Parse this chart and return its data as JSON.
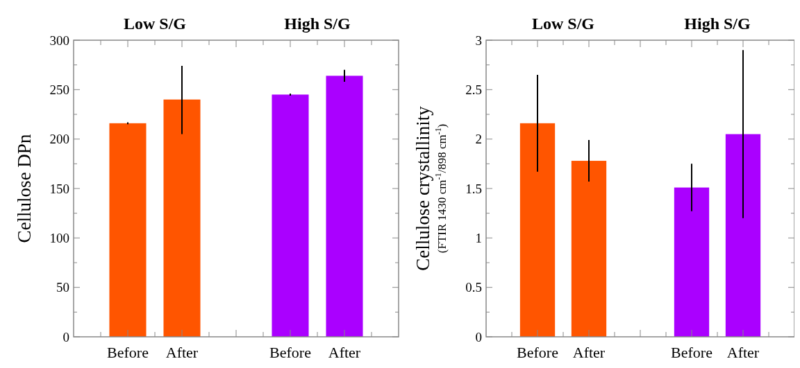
{
  "chart_data": [
    {
      "type": "bar",
      "categories": [
        "Before",
        "After",
        null,
        "Before",
        "After"
      ],
      "annotations": [
        "Low S/G",
        "High S/G"
      ],
      "ylabel": "Cellulose DPn",
      "values": [
        216,
        240,
        null,
        245,
        264
      ],
      "errors": [
        1,
        [
          205,
          274
        ],
        null,
        1,
        [
          258,
          270
        ]
      ],
      "colors": [
        "#ff5500",
        "#ff5500",
        null,
        "#aa00ff",
        "#aa00ff"
      ],
      "ylim": [
        0,
        300
      ],
      "yticks": [
        0,
        50,
        100,
        150,
        200,
        250,
        300
      ]
    },
    {
      "type": "bar",
      "categories": [
        "Before",
        "After",
        null,
        "Before",
        "After"
      ],
      "annotations": [
        "Low S/G",
        "High S/G"
      ],
      "ylabel": "Cellulose crystallinity\n(FTIR 1430 cm$^{-1}$/898 cm$^{-1}$)",
      "values": [
        2.16,
        1.78,
        null,
        1.51,
        2.05
      ],
      "errors": [
        [
          1.67,
          2.65
        ],
        [
          1.57,
          1.99
        ],
        null,
        [
          1.27,
          1.75
        ],
        [
          1.2,
          2.9
        ]
      ],
      "colors": [
        "#ff5500",
        "#ff5500",
        null,
        "#aa00ff",
        "#aa00ff"
      ],
      "ylim": [
        0,
        3
      ],
      "yticks": [
        0,
        {
          "value": 0.5,
          "label": "0.5"
        },
        1,
        {
          "value": 1.5,
          "label": "1.5"
        },
        2,
        {
          "value": 2.5,
          "label": "2.5"
        },
        3
      ]
    }
  ]
}
